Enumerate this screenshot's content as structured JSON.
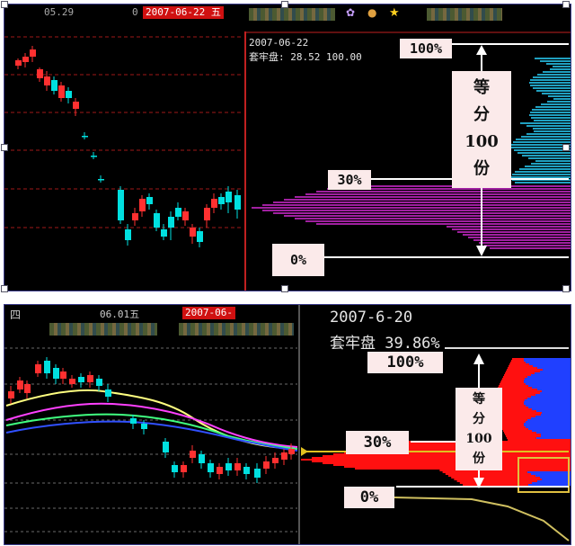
{
  "top": {
    "header_left": "05.29",
    "header_zero": "0",
    "date_box": "2007-06-22 五",
    "info_date": "2007-06-22",
    "info_line": "套牢盘: 28.52 100.00",
    "label_100": "100%",
    "label_30": "30%",
    "label_0": "0%",
    "vertical_box": [
      "等",
      "分",
      "100",
      "份"
    ]
  },
  "bottom": {
    "header_left": "四",
    "header_mid": "06.01五",
    "date_box": "2007-06-",
    "info_date": "2007-6-20",
    "info_line": "套牢盘 39.86%",
    "label_100": "100%",
    "label_30": "30%",
    "label_0": "0%",
    "vertical_box": [
      "等",
      "分",
      "100",
      "份"
    ]
  },
  "colors": {
    "up": "#ff3030",
    "down": "#00e0e0",
    "grid": "#a01818",
    "profile_purple": "#a020a0",
    "profile_cyan": "#20a0c0",
    "profile_red": "#ff1010",
    "profile_blue": "#2040ff",
    "divider": "#c02020"
  },
  "chart_data": [
    {
      "type": "candlestick",
      "panel": "top",
      "percent_levels": [
        "100%",
        "30%",
        "0%"
      ],
      "title": "",
      "xlabel": "",
      "ylabel": ""
    },
    {
      "type": "candlestick",
      "panel": "bottom",
      "percent_levels": [
        "100%",
        "30%",
        "0%"
      ],
      "title": "",
      "xlabel": "",
      "ylabel": ""
    }
  ]
}
